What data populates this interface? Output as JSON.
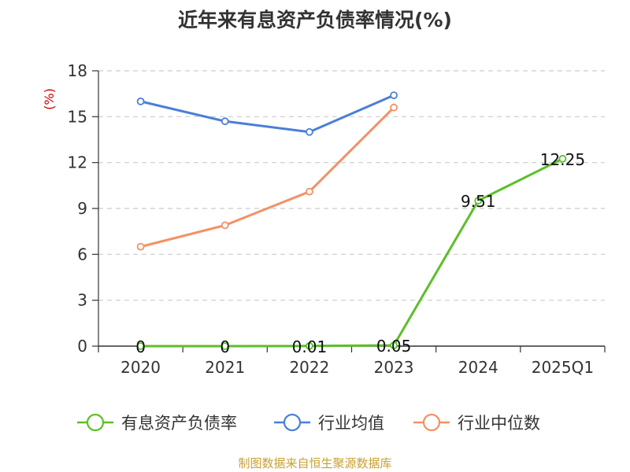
{
  "chart_data": {
    "type": "line",
    "title": "近年来有息资产负债率情况(%)",
    "ylabel": "(%)",
    "xlabel": "",
    "categories": [
      "2020",
      "2021",
      "2022",
      "2023",
      "2024",
      "2025Q1"
    ],
    "yticks": [
      "0",
      "3",
      "6",
      "9",
      "12",
      "15",
      "18"
    ],
    "ylim": [
      0,
      18
    ],
    "grid": true,
    "legend_position": "bottom",
    "series": [
      {
        "name": "有息资产负债率",
        "color": "#5cbf2a",
        "values": [
          0,
          0,
          0.01,
          0.05,
          9.51,
          12.25
        ],
        "labels": [
          "0",
          "0",
          "0.01",
          "0.05",
          "9.51",
          "12.25"
        ]
      },
      {
        "name": "行业均值",
        "color": "#4a7fd8",
        "values": [
          16.0,
          14.7,
          14.0,
          16.4,
          null,
          null
        ]
      },
      {
        "name": "行业中位数",
        "color": "#f59064",
        "values": [
          6.5,
          7.9,
          10.1,
          15.6,
          null,
          null
        ]
      }
    ]
  },
  "source": "制图数据来自恒生聚源数据库"
}
